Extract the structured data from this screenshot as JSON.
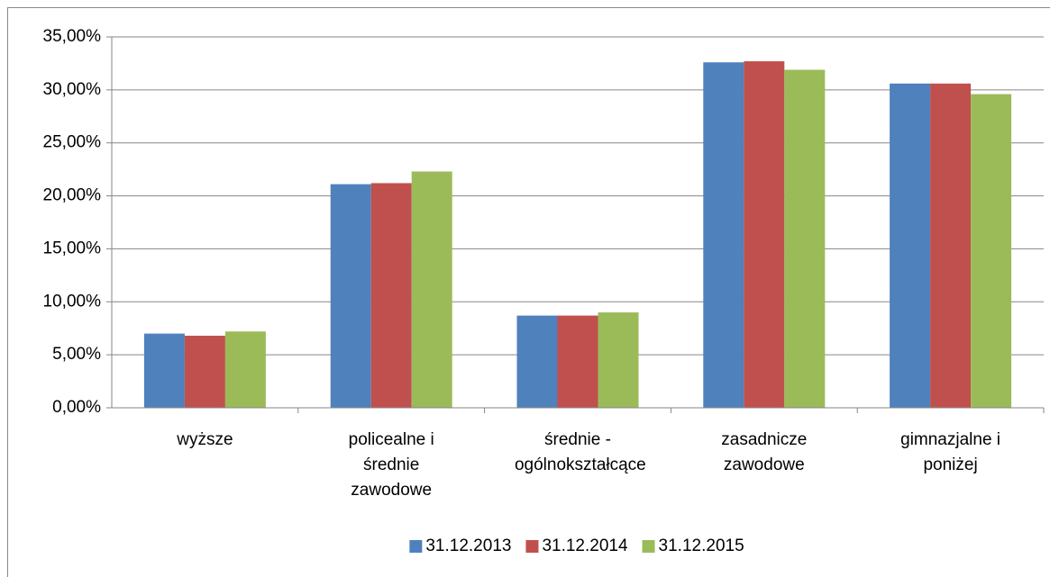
{
  "chart_data": {
    "type": "bar",
    "categories": [
      "wyższe",
      "policealne i średnie zawodowe",
      "średnie - ogólnokształcące",
      "zasadnicze zawodowe",
      "gimnazjalne i poniżej"
    ],
    "series": [
      {
        "name": "31.12.2013",
        "color": "#4f81bd",
        "values": [
          7.0,
          21.1,
          8.7,
          32.6,
          30.6
        ]
      },
      {
        "name": "31.12.2014",
        "color": "#c0504d",
        "values": [
          6.8,
          21.2,
          8.7,
          32.7,
          30.6
        ]
      },
      {
        "name": "31.12.2015",
        "color": "#9bbb59",
        "values": [
          7.2,
          22.3,
          9.0,
          31.9,
          29.6
        ]
      }
    ],
    "ylim": [
      0,
      35
    ],
    "yticks": [
      {
        "value": 0,
        "label": "0,00%"
      },
      {
        "value": 5,
        "label": "5,00%"
      },
      {
        "value": 10,
        "label": "10,00%"
      },
      {
        "value": 15,
        "label": "15,00%"
      },
      {
        "value": 20,
        "label": "20,00%"
      },
      {
        "value": 25,
        "label": "25,00%"
      },
      {
        "value": 30,
        "label": "30,00%"
      },
      {
        "value": 35,
        "label": "35,00%"
      }
    ],
    "grid": true,
    "legend": "bottom"
  }
}
